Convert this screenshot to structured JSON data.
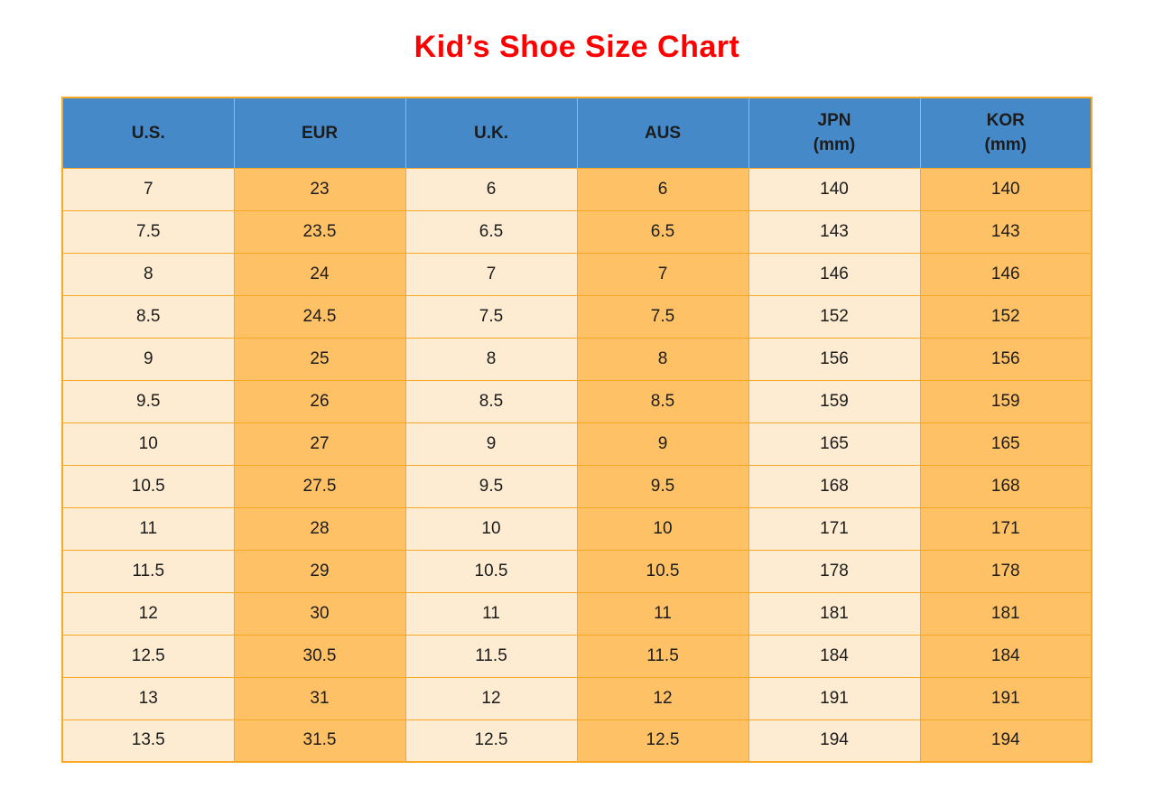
{
  "title": "Kid’s Shoe Size Chart",
  "colors": {
    "title_red": "#FE0000",
    "header_blue": "#4589C8",
    "cell_cream": "#FDECD2",
    "cell_orange": "#FFC166",
    "border_orange": "#F9A826",
    "text_black": "#1C1C1C"
  },
  "chart_data": {
    "type": "table",
    "title": "Kid’s Shoe Size Chart",
    "columns": [
      "U.S.",
      "EUR",
      "U.K.",
      "AUS",
      "JPN (mm)",
      "KOR (mm)"
    ],
    "header_display": [
      "U.S.",
      "EUR",
      "U.K.",
      "AUS",
      "JPN\n(mm)",
      "KOR\n(mm)"
    ],
    "rows": [
      [
        "7",
        "23",
        "6",
        "6",
        "140",
        "140"
      ],
      [
        "7.5",
        "23.5",
        "6.5",
        "6.5",
        "143",
        "143"
      ],
      [
        "8",
        "24",
        "7",
        "7",
        "146",
        "146"
      ],
      [
        "8.5",
        "24.5",
        "7.5",
        "7.5",
        "152",
        "152"
      ],
      [
        "9",
        "25",
        "8",
        "8",
        "156",
        "156"
      ],
      [
        "9.5",
        "26",
        "8.5",
        "8.5",
        "159",
        "159"
      ],
      [
        "10",
        "27",
        "9",
        "9",
        "165",
        "165"
      ],
      [
        "10.5",
        "27.5",
        "9.5",
        "9.5",
        "168",
        "168"
      ],
      [
        "11",
        "28",
        "10",
        "10",
        "171",
        "171"
      ],
      [
        "11.5",
        "29",
        "10.5",
        "10.5",
        "178",
        "178"
      ],
      [
        "12",
        "30",
        "11",
        "11",
        "181",
        "181"
      ],
      [
        "12.5",
        "30.5",
        "11.5",
        "11.5",
        "184",
        "184"
      ],
      [
        "13",
        "31",
        "12",
        "12",
        "191",
        "191"
      ],
      [
        "13.5",
        "31.5",
        "12.5",
        "12.5",
        "194",
        "194"
      ]
    ],
    "layout_hints": {
      "column_fill_pattern": [
        "cream",
        "orange",
        "cream",
        "orange",
        "cream",
        "orange"
      ],
      "header_fill": "blue",
      "grid": true
    }
  }
}
